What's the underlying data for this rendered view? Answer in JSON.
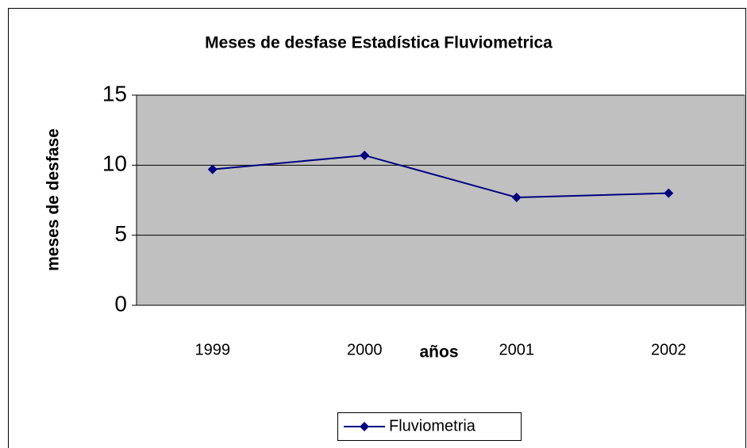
{
  "chart_data": {
    "type": "line",
    "title": "Meses de desfase Estadística Fluviometrica",
    "x_label": "años",
    "y_label": "meses de desfase",
    "categories": [
      "1999",
      "2000",
      "2001",
      "2002"
    ],
    "series": [
      {
        "name": "Fluviometria",
        "color": "#000080",
        "values": [
          9.7,
          10.7,
          7.7,
          8.0
        ]
      }
    ],
    "ylim": [
      0,
      15
    ],
    "yticks": [
      0,
      5,
      10,
      15
    ],
    "grid": true,
    "legend": "bottom"
  }
}
